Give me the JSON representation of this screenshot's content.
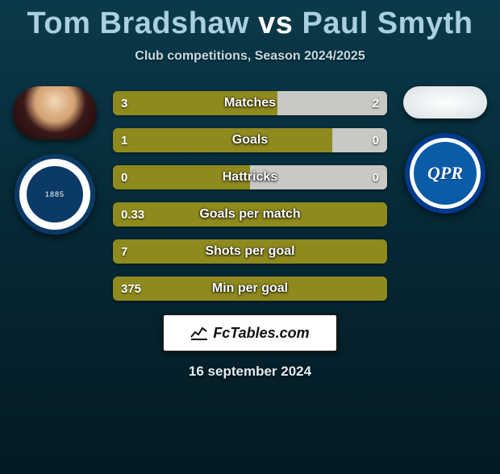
{
  "title": {
    "player1": "Tom Bradshaw",
    "vs": "vs",
    "player2": "Paul Smyth"
  },
  "subtitle": "Club competitions, Season 2024/2025",
  "brand": "FcTables.com",
  "date": "16 september 2024",
  "colors": {
    "bar_left": "#8f8a1d",
    "bar_right": "#c8c8c5"
  },
  "clubs": {
    "left": {
      "name": "Millwall",
      "badge_text": "1885"
    },
    "right": {
      "name": "QPR",
      "badge_text": "QPR"
    }
  },
  "stats": [
    {
      "label": "Matches",
      "left_val": "3",
      "right_val": "2",
      "left_pct": 60,
      "right_pct": 40
    },
    {
      "label": "Goals",
      "left_val": "1",
      "right_val": "0",
      "left_pct": 80,
      "right_pct": 20
    },
    {
      "label": "Hattricks",
      "left_val": "0",
      "right_val": "0",
      "left_pct": 50,
      "right_pct": 50
    },
    {
      "label": "Goals per match",
      "left_val": "0.33",
      "right_val": "",
      "left_pct": 100,
      "right_pct": 0
    },
    {
      "label": "Shots per goal",
      "left_val": "7",
      "right_val": "",
      "left_pct": 100,
      "right_pct": 0
    },
    {
      "label": "Min per goal",
      "left_val": "375",
      "right_val": "",
      "left_pct": 100,
      "right_pct": 0
    }
  ]
}
